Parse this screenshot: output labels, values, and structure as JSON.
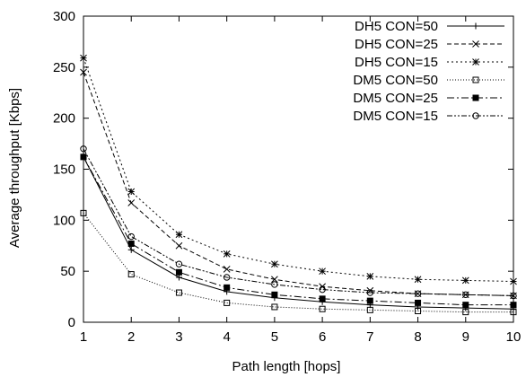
{
  "chart_data": {
    "type": "line",
    "title": "",
    "xlabel": "Path length [hops]",
    "ylabel": "Average throughput [Kbps]",
    "xlim": [
      1,
      10
    ],
    "ylim": [
      0,
      300
    ],
    "x_ticks": [
      "1",
      "2",
      "3",
      "4",
      "5",
      "6",
      "7",
      "8",
      "9",
      "10"
    ],
    "y_ticks": [
      "0",
      "50",
      "100",
      "150",
      "200",
      "250",
      "300"
    ],
    "grid": false,
    "legend_position": "top-right",
    "x": [
      1,
      2,
      3,
      4,
      5,
      6,
      7,
      8,
      9,
      10
    ],
    "series": [
      {
        "name": "DH5 CON=50",
        "marker": "plus",
        "dash": "solid",
        "values": [
          162,
          71,
          44,
          30,
          24,
          20,
          17,
          15,
          14,
          13
        ]
      },
      {
        "name": "DH5 CON=25",
        "marker": "x",
        "dash": "5,3",
        "values": [
          245,
          117,
          75,
          52,
          42,
          35,
          31,
          28,
          27,
          26
        ]
      },
      {
        "name": "DH5 CON=15",
        "marker": "star",
        "dash": "2,3",
        "values": [
          259,
          128,
          86,
          67,
          57,
          50,
          45,
          42,
          41,
          40
        ]
      },
      {
        "name": "DM5 CON=50",
        "marker": "open-square",
        "dash": "1,2",
        "values": [
          107,
          47,
          29,
          19,
          15,
          13,
          12,
          11,
          10,
          10
        ]
      },
      {
        "name": "DM5 CON=25",
        "marker": "filled-square",
        "dash": "8,3,2,3",
        "values": [
          162,
          77,
          49,
          34,
          27,
          23,
          21,
          19,
          17,
          17
        ]
      },
      {
        "name": "DM5 CON=15",
        "marker": "open-circle",
        "dash": "6,2,2,2,2,2",
        "values": [
          170,
          84,
          57,
          44,
          37,
          32,
          29,
          28,
          27,
          26
        ]
      }
    ]
  }
}
